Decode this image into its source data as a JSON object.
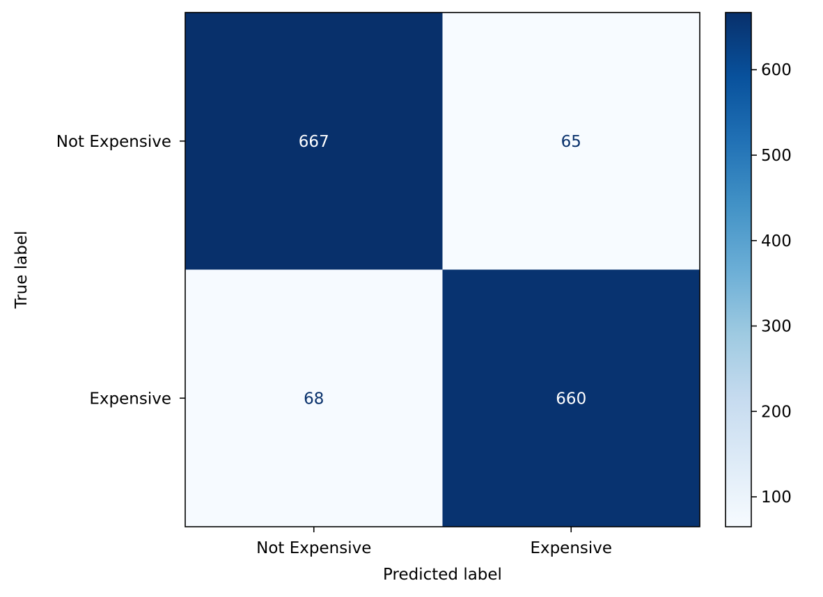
{
  "chart_data": {
    "type": "heatmap",
    "title": "",
    "xlabel": "Predicted label",
    "ylabel": "True label",
    "x_categories": [
      "Not Expensive",
      "Expensive"
    ],
    "y_categories": [
      "Not Expensive",
      "Expensive"
    ],
    "matrix": [
      [
        667,
        65
      ],
      [
        68,
        660
      ]
    ],
    "colormap": "Blues",
    "colormap_stops": [
      "#f7fbff",
      "#deebf7",
      "#c6dbef",
      "#9ecae1",
      "#6baed6",
      "#4292c6",
      "#2171b5",
      "#08519c",
      "#08306b"
    ],
    "colorbar": {
      "range": [
        65,
        667
      ],
      "ticks": [
        100,
        200,
        300,
        400,
        500,
        600
      ]
    },
    "dark_text_color": "#08306b",
    "light_text_color": "#ffffff",
    "grid": false,
    "legend": "colorbar-right"
  }
}
